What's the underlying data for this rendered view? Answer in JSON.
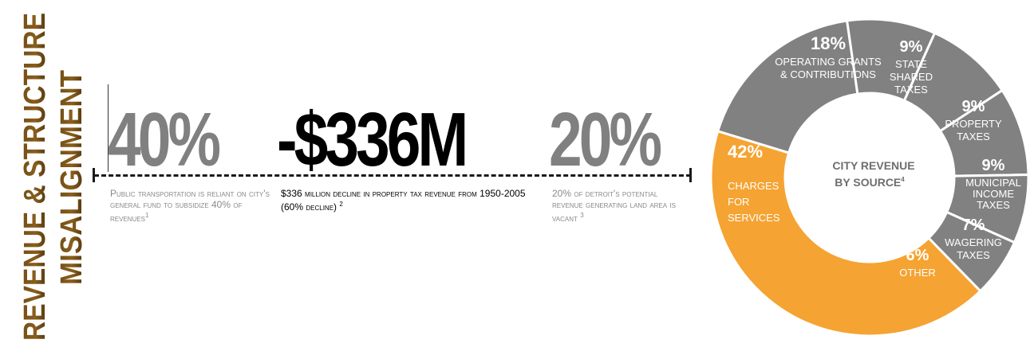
{
  "section_title": {
    "line1": "REVENUE & STRUCTURE",
    "line2": "MISALIGNMENT"
  },
  "stats": [
    {
      "value": "40%",
      "desc_lead": "Public transportation is reliant on city's general fund to subsidize ",
      "desc_num": "40%",
      "desc_tail": " of revenues",
      "note": "1"
    },
    {
      "value": "-$336M",
      "desc_lead": "$336",
      "desc_mid": " million decline in property tax revenue from ",
      "desc_years": "1950-2005 (60%",
      "desc_tail": " decline)",
      "note": "2"
    },
    {
      "value": "20%",
      "desc_lead": "20%",
      "desc_tail": " of detroit's potential revenue generating land area is vacant",
      "note": "3"
    }
  ],
  "chart_data": {
    "type": "pie",
    "title": "CITY REVENUE BY SOURCE",
    "title_line1": "CITY REVENUE",
    "title_line2": "BY SOURCE",
    "title_note": "4",
    "slices": [
      {
        "label": "OPERATING GRANTS & CONTRIBUTIONS",
        "value": 18,
        "pct_label": "18%",
        "lines": [
          "OPERATING GRANTS",
          "& CONTRIBUTIONS"
        ]
      },
      {
        "label": "STATE SHARED TAXES",
        "value": 9,
        "pct_label": "9%",
        "lines": [
          "STATE",
          "SHARED",
          "TAXES"
        ]
      },
      {
        "label": "PROPERTY TAXES",
        "value": 9,
        "pct_label": "9%",
        "lines": [
          "PROPERTY",
          "TAXES"
        ]
      },
      {
        "label": "MUNICIPAL INCOME TAXES",
        "value": 9,
        "pct_label": "9%",
        "lines": [
          "MUNICIPAL",
          "INCOME",
          "TAXES"
        ]
      },
      {
        "label": "WAGERING TAXES",
        "value": 7,
        "pct_label": "7%",
        "lines": [
          "WAGERING",
          "TAXES"
        ]
      },
      {
        "label": "OTHER",
        "value": 6,
        "pct_label": "6%",
        "lines": [
          "OTHER"
        ]
      },
      {
        "label": "CHARGES FOR SERVICES",
        "value": 42,
        "pct_label": "42%",
        "lines": [
          "CHARGES",
          "FOR",
          "SERVICES"
        ]
      }
    ],
    "colors": {
      "highlight": "#F5A332",
      "default": "#818181"
    }
  }
}
